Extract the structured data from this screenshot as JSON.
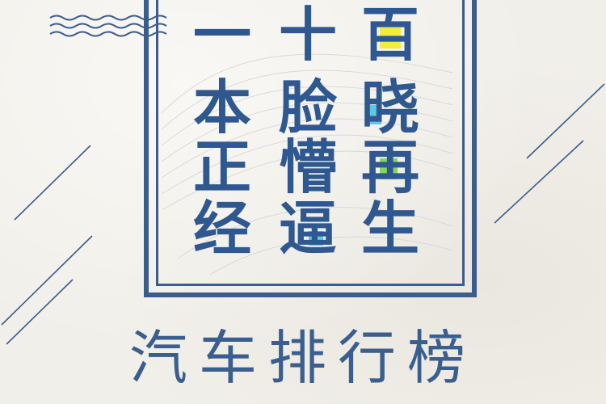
{
  "poem": {
    "col1": [
      "一",
      "本",
      "正",
      "经"
    ],
    "col2": [
      "十",
      "脸",
      "懵",
      "逼"
    ],
    "col3": [
      "百",
      "晓",
      "再",
      "生"
    ]
  },
  "title": "汽车排行榜",
  "colors": {
    "ink": "#3c5c8c",
    "background": "#f1efe9",
    "highlight_yellow": "#f4ec3a",
    "highlight_cyan": "#5fc8e0",
    "highlight_green": "#7fd85a"
  }
}
